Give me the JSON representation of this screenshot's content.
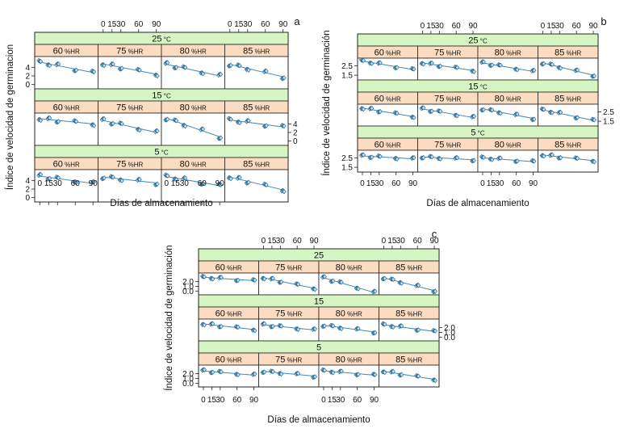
{
  "chart_data": [
    {
      "type": "scatter",
      "panel_label": "a",
      "xlabel": "Días de almacenamiento",
      "ylabel": "Índice de velocidad de germinacion",
      "x_ticks": [
        "0",
        "15",
        "30",
        "60",
        "90"
      ],
      "y_ticks": [
        "0",
        "2",
        "4"
      ],
      "ylim": [
        -1,
        6.5
      ],
      "columns": [
        {
          "rh": "60",
          "unit": "%HR"
        },
        {
          "rh": "75",
          "unit": "%HR"
        },
        {
          "rh": "80",
          "unit": "%HR"
        },
        {
          "rh": "85",
          "unit": "%HR"
        }
      ],
      "rows": [
        {
          "temp": "25",
          "unit": "°C",
          "fits": [
            [
              5.2,
              2.8
            ],
            [
              4.8,
              2.4
            ],
            [
              4.7,
              2.0
            ],
            [
              4.7,
              1.8
            ]
          ]
        },
        {
          "temp": "15",
          "unit": "°C",
          "fits": [
            [
              5.2,
              4.0
            ],
            [
              4.8,
              2.0
            ],
            [
              5.3,
              1.0
            ],
            [
              4.9,
              3.3
            ]
          ]
        },
        {
          "temp": "5",
          "unit": "°C",
          "fits": [
            [
              5.0,
              3.3
            ],
            [
              4.8,
              3.4
            ],
            [
              4.9,
              2.8
            ],
            [
              4.8,
              1.8
            ]
          ]
        }
      ]
    },
    {
      "type": "scatter",
      "panel_label": "b",
      "xlabel": "Días de almacenamiento",
      "ylabel": "Índice de velocidad de germinación",
      "x_ticks": [
        "0",
        "15",
        "30",
        "60",
        "90"
      ],
      "y_ticks": [
        "1.5",
        "2.5"
      ],
      "ylim": [
        1.0,
        3.3
      ],
      "columns": [
        {
          "rh": "60",
          "unit": "%HR"
        },
        {
          "rh": "75",
          "unit": "%HR"
        },
        {
          "rh": "80",
          "unit": "%HR"
        },
        {
          "rh": "85",
          "unit": "%HR"
        }
      ],
      "rows": [
        {
          "temp": "25",
          "unit": "°C",
          "fits": [
            [
              3.0,
              2.1
            ],
            [
              2.8,
              2.0
            ],
            [
              2.8,
              1.9
            ],
            [
              2.8,
              1.5
            ]
          ]
        },
        {
          "temp": "15",
          "unit": "°C",
          "fits": [
            [
              2.9,
              2.0
            ],
            [
              2.8,
              1.9
            ],
            [
              2.8,
              1.8
            ],
            [
              2.7,
              1.6
            ]
          ]
        },
        {
          "temp": "5",
          "unit": "°C",
          "fits": [
            [
              2.7,
              2.4
            ],
            [
              2.6,
              2.3
            ],
            [
              2.5,
              2.1
            ],
            [
              2.8,
              2.2
            ]
          ]
        }
      ]
    },
    {
      "type": "scatter",
      "panel_label": "c",
      "xlabel": "Días de almacenamiento",
      "ylabel": "Índice de velocidad de germinación",
      "x_ticks": [
        "0",
        "15",
        "30",
        "60",
        "90"
      ],
      "y_ticks": [
        "0.0",
        "1.0",
        "2.0"
      ],
      "ylim": [
        -0.8,
        3.8
      ],
      "columns": [
        {
          "rh": "60",
          "unit": "%HR"
        },
        {
          "rh": "75",
          "unit": "%HR"
        },
        {
          "rh": "80",
          "unit": "%HR"
        },
        {
          "rh": "85",
          "unit": "%HR"
        }
      ],
      "rows": [
        {
          "temp": "25",
          "unit": "",
          "fits": [
            [
              2.9,
              2.2
            ],
            [
              2.8,
              0.6
            ],
            [
              2.8,
              -0.3
            ],
            [
              2.8,
              0.1
            ]
          ]
        },
        {
          "temp": "15",
          "unit": "",
          "fits": [
            [
              2.8,
              1.6
            ],
            [
              2.6,
              1.5
            ],
            [
              2.5,
              1.1
            ],
            [
              2.6,
              1.2
            ]
          ]
        },
        {
          "temp": "5",
          "unit": "",
          "fits": [
            [
              2.6,
              1.7
            ],
            [
              2.5,
              1.5
            ],
            [
              2.6,
              1.7
            ],
            [
              2.5,
              0.8
            ]
          ]
        }
      ]
    }
  ]
}
